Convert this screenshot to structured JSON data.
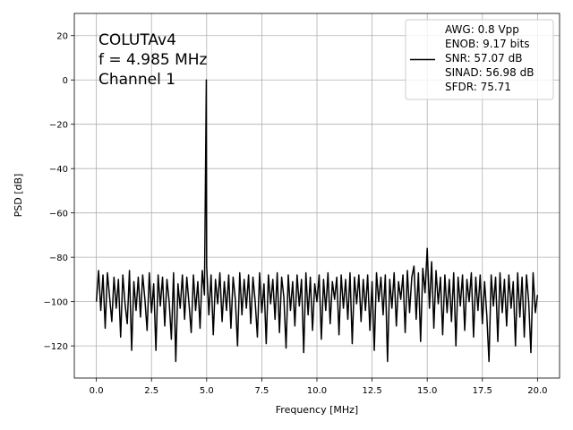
{
  "chart_data": {
    "type": "line",
    "annotation": [
      "COLUTAv4",
      "f = 4.985 MHz",
      "Channel 1"
    ],
    "x_label": "Frequency [MHz]",
    "y_label": "PSD [dB]",
    "xlim": [
      -1,
      21
    ],
    "ylim": [
      -134.5,
      30
    ],
    "xticks": [
      {
        "value": 0,
        "label": "0.0"
      },
      2.5,
      {
        "value": 5,
        "label": "5.0"
      },
      7.5,
      {
        "value": 10,
        "label": "10.0"
      },
      12.5,
      {
        "value": 15,
        "label": "15.0"
      },
      17.5,
      {
        "value": 20,
        "label": "20.0"
      }
    ],
    "yticks": [
      {
        "value": -120,
        "label": "−120"
      },
      {
        "value": -100,
        "label": "−100"
      },
      {
        "value": -80,
        "label": "−80"
      },
      {
        "value": -60,
        "label": "−60"
      },
      {
        "value": -40,
        "label": "−40"
      },
      {
        "value": -20,
        "label": "−20"
      },
      0,
      20
    ],
    "grid": true,
    "legend": "upper right",
    "x": [
      0,
      0.1,
      0.2,
      0.3,
      0.4,
      0.5,
      0.6,
      0.7,
      0.8,
      0.9,
      1,
      1.1,
      1.2,
      1.3,
      1.4,
      1.5,
      1.6,
      1.7,
      1.8,
      1.9,
      2,
      2.1,
      2.2,
      2.3,
      2.4,
      2.5,
      2.6,
      2.7,
      2.8,
      2.9,
      3,
      3.1,
      3.2,
      3.3,
      3.4,
      3.5,
      3.6,
      3.7,
      3.8,
      3.9,
      4,
      4.1,
      4.2,
      4.3,
      4.4,
      4.5,
      4.6,
      4.7,
      4.8,
      4.9,
      4.985,
      5,
      5.1,
      5.2,
      5.3,
      5.4,
      5.5,
      5.6,
      5.7,
      5.8,
      5.9,
      6,
      6.1,
      6.2,
      6.3,
      6.4,
      6.5,
      6.6,
      6.7,
      6.8,
      6.9,
      7,
      7.1,
      7.2,
      7.3,
      7.4,
      7.5,
      7.6,
      7.7,
      7.8,
      7.9,
      8,
      8.1,
      8.2,
      8.3,
      8.4,
      8.5,
      8.6,
      8.7,
      8.8,
      8.9,
      9,
      9.1,
      9.2,
      9.3,
      9.4,
      9.5,
      9.6,
      9.7,
      9.8,
      9.9,
      10,
      10.1,
      10.2,
      10.3,
      10.4,
      10.5,
      10.6,
      10.7,
      10.8,
      10.9,
      11,
      11.1,
      11.2,
      11.3,
      11.4,
      11.5,
      11.6,
      11.7,
      11.8,
      11.9,
      12,
      12.1,
      12.2,
      12.3,
      12.4,
      12.5,
      12.6,
      12.7,
      12.8,
      12.9,
      13,
      13.1,
      13.2,
      13.3,
      13.4,
      13.5,
      13.6,
      13.7,
      13.8,
      13.9,
      14,
      14.1,
      14.2,
      14.3,
      14.4,
      14.5,
      14.6,
      14.7,
      14.8,
      14.9,
      15,
      15.1,
      15.2,
      15.3,
      15.4,
      15.5,
      15.6,
      15.7,
      15.8,
      15.9,
      16,
      16.1,
      16.2,
      16.3,
      16.4,
      16.5,
      16.6,
      16.7,
      16.8,
      16.9,
      17,
      17.1,
      17.2,
      17.3,
      17.4,
      17.5,
      17.6,
      17.7,
      17.8,
      17.9,
      18,
      18.1,
      18.2,
      18.3,
      18.4,
      18.5,
      18.6,
      18.7,
      18.8,
      18.9,
      19,
      19.1,
      19.2,
      19.3,
      19.4,
      19.5,
      19.6,
      19.7,
      19.8,
      19.9,
      20
    ],
    "series": [
      {
        "name": [
          "AWG: 0.8 Vpp",
          "ENOB: 9.17 bits",
          "SNR: 57.07 dB",
          "SINAD: 56.98 dB",
          "SFDR: 75.71"
        ],
        "color": "#000000",
        "values": [
          -100,
          -86,
          -104,
          -88,
          -112,
          -87,
          -98,
          -109,
          -89,
          -103,
          -90,
          -116,
          -88,
          -101,
          -110,
          -86,
          -122,
          -91,
          -104,
          -89,
          -107,
          -88,
          -99,
          -113,
          -87,
          -105,
          -92,
          -122,
          -88,
          -102,
          -89,
          -111,
          -90,
          -100,
          -117,
          -87,
          -127,
          -92,
          -103,
          -88,
          -108,
          -89,
          -101,
          -114,
          -88,
          -104,
          -91,
          -112,
          -86,
          -97,
          0,
          -84,
          -106,
          -88,
          -115,
          -90,
          -101,
          -87,
          -109,
          -91,
          -104,
          -88,
          -112,
          -89,
          -99,
          -120,
          -87,
          -106,
          -90,
          -103,
          -88,
          -110,
          -89,
          -100,
          -116,
          -87,
          -105,
          -92,
          -119,
          -88,
          -101,
          -90,
          -108,
          -87,
          -114,
          -89,
          -98,
          -121,
          -88,
          -104,
          -91,
          -111,
          -88,
          -102,
          -90,
          -123,
          -87,
          -106,
          -89,
          -113,
          -92,
          -100,
          -88,
          -117,
          -90,
          -104,
          -87,
          -110,
          -91,
          -99,
          -89,
          -115,
          -88,
          -103,
          -90,
          -108,
          -87,
          -119,
          -89,
          -101,
          -88,
          -109,
          -90,
          -104,
          -88,
          -113,
          -91,
          -122,
          -87,
          -100,
          -89,
          -106,
          -88,
          -127,
          -90,
          -103,
          -87,
          -111,
          -91,
          -99,
          -88,
          -114,
          -86,
          -105,
          -89,
          -84,
          -108,
          -87,
          -118,
          -85,
          -96,
          -76,
          -103,
          -82,
          -112,
          -86,
          -101,
          -89,
          -115,
          -88,
          -105,
          -90,
          -109,
          -87,
          -120,
          -89,
          -102,
          -88,
          -113,
          -90,
          -100,
          -87,
          -116,
          -89,
          -104,
          -88,
          -110,
          -91,
          -106,
          -127,
          -88,
          -102,
          -89,
          -118,
          -87,
          -105,
          -90,
          -111,
          -88,
          -103,
          -91,
          -120,
          -87,
          -107,
          -89,
          -116,
          -88,
          -100,
          -123,
          -87,
          -105,
          -97
        ]
      }
    ]
  }
}
